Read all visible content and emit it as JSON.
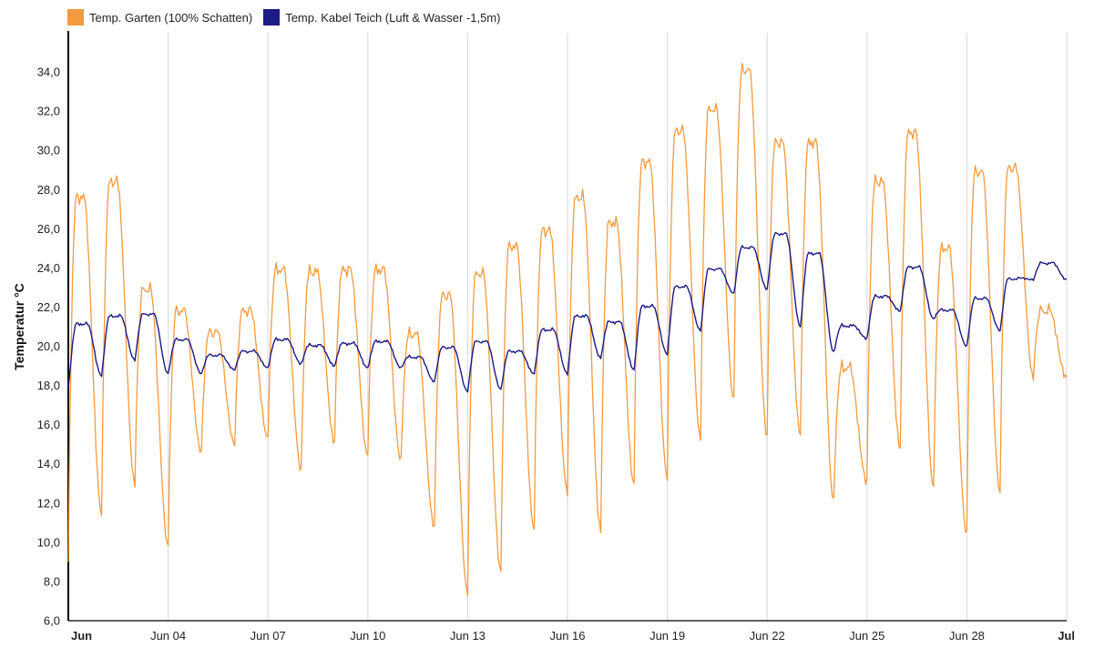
{
  "chart_data": {
    "type": "line",
    "ylabel": "Temperatur °C",
    "ylim": [
      6,
      36
    ],
    "y_ticks": [
      "6,0",
      "8,0",
      "10,0",
      "12,0",
      "14,0",
      "16,0",
      "18,0",
      "20,0",
      "22,0",
      "24,0",
      "26,0",
      "28,0",
      "30,0",
      "32,0",
      "34,0"
    ],
    "x_range_days": [
      0,
      30
    ],
    "x_ticks": [
      {
        "label": "Jun",
        "day": 0,
        "bold": true
      },
      {
        "label": "Jun 04",
        "day": 3
      },
      {
        "label": "Jun 07",
        "day": 6
      },
      {
        "label": "Jun 10",
        "day": 9
      },
      {
        "label": "Jun 13",
        "day": 12
      },
      {
        "label": "Jun 16",
        "day": 15
      },
      {
        "label": "Jun 19",
        "day": 18
      },
      {
        "label": "Jun 22",
        "day": 21
      },
      {
        "label": "Jun 25",
        "day": 24
      },
      {
        "label": "Jun 28",
        "day": 27
      },
      {
        "label": "Jul",
        "day": 30,
        "bold": true
      }
    ],
    "grid": "vertical",
    "legend_position": "top-left",
    "series": [
      {
        "name": "Temp. Garten (100% Schatten)",
        "color": "#f39a3c",
        "daily_min": [
          9.0,
          11.5,
          13.0,
          9.8,
          14.6,
          15.0,
          15.3,
          13.7,
          15.1,
          14.4,
          14.2,
          10.8,
          7.4,
          8.5,
          10.7,
          12.6,
          10.6,
          13.0,
          13.3,
          15.3,
          17.3,
          15.4,
          15.5,
          12.1,
          13.1,
          14.8,
          12.8,
          10.4,
          12.6,
          18.4
        ],
        "daily_max": [
          27.8,
          28.6,
          23.1,
          22.0,
          20.9,
          22.0,
          24.1,
          24.0,
          24.1,
          24.1,
          20.8,
          22.8,
          23.9,
          25.3,
          26.1,
          27.8,
          26.5,
          29.6,
          31.2,
          32.3,
          34.3,
          30.6,
          30.6,
          19.1,
          28.6,
          31.1,
          25.2,
          29.1,
          29.3,
          22.0
        ]
      },
      {
        "name": "Temp. Kabel Teich (Luft & Wasser -1,5m)",
        "color": "#1c1a86",
        "daily_min": [
          17.9,
          18.5,
          19.3,
          18.6,
          18.6,
          18.8,
          18.9,
          19.1,
          19.0,
          18.9,
          18.9,
          18.2,
          17.7,
          17.8,
          18.6,
          18.6,
          19.4,
          18.8,
          19.6,
          20.8,
          22.7,
          22.9,
          21.0,
          19.7,
          20.4,
          21.8,
          21.4,
          20.0,
          20.8,
          23.4
        ],
        "daily_max": [
          21.2,
          21.6,
          21.7,
          20.4,
          19.6,
          19.8,
          20.4,
          20.1,
          20.2,
          20.3,
          19.5,
          20.0,
          20.3,
          19.8,
          20.9,
          21.6,
          21.3,
          22.1,
          23.1,
          24.0,
          25.1,
          25.8,
          24.8,
          21.1,
          22.6,
          24.1,
          21.9,
          22.5,
          23.5,
          24.3
        ]
      }
    ]
  }
}
